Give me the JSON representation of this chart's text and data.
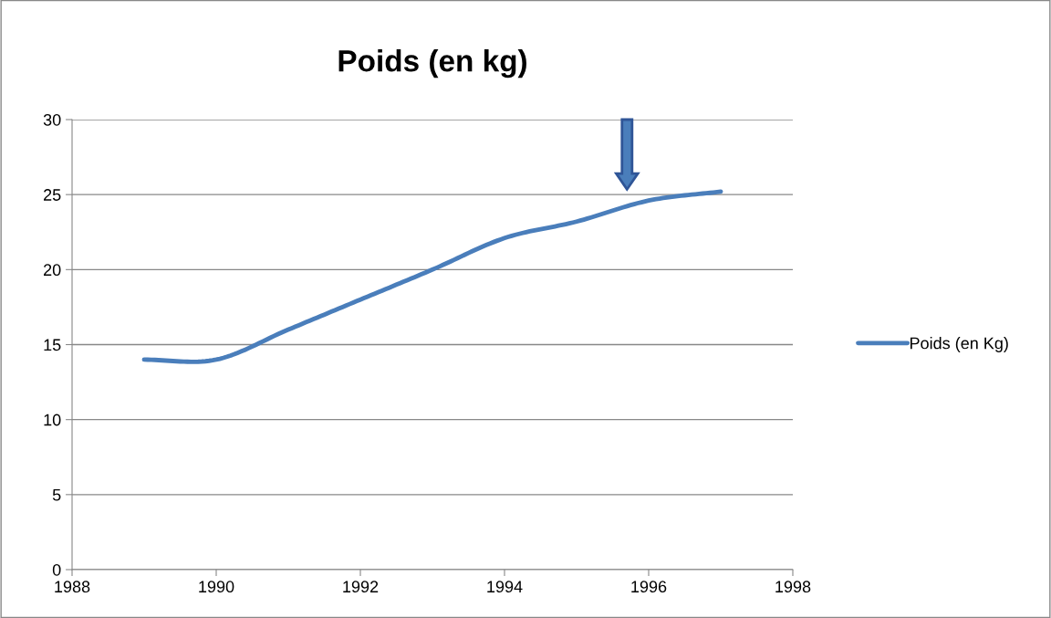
{
  "chart_data": {
    "type": "line",
    "title": "Poids (en kg)",
    "x": [
      1989,
      1990,
      1991,
      1992,
      1993,
      1994,
      1995,
      1996,
      1997
    ],
    "series": [
      {
        "name": "Poids (en Kg)",
        "color": "#4a7ebb",
        "values": [
          14,
          14,
          16,
          18,
          20,
          22.1,
          23.2,
          24.6,
          25.2
        ]
      }
    ],
    "xlim": [
      1988,
      1998
    ],
    "xticks": [
      1988,
      1990,
      1992,
      1994,
      1996,
      1998
    ],
    "ylim": [
      0,
      30
    ],
    "yticks": [
      0,
      5,
      10,
      15,
      20,
      25,
      30
    ],
    "grid": "y",
    "legend": "right",
    "marker": "none",
    "line_style": "solid"
  }
}
